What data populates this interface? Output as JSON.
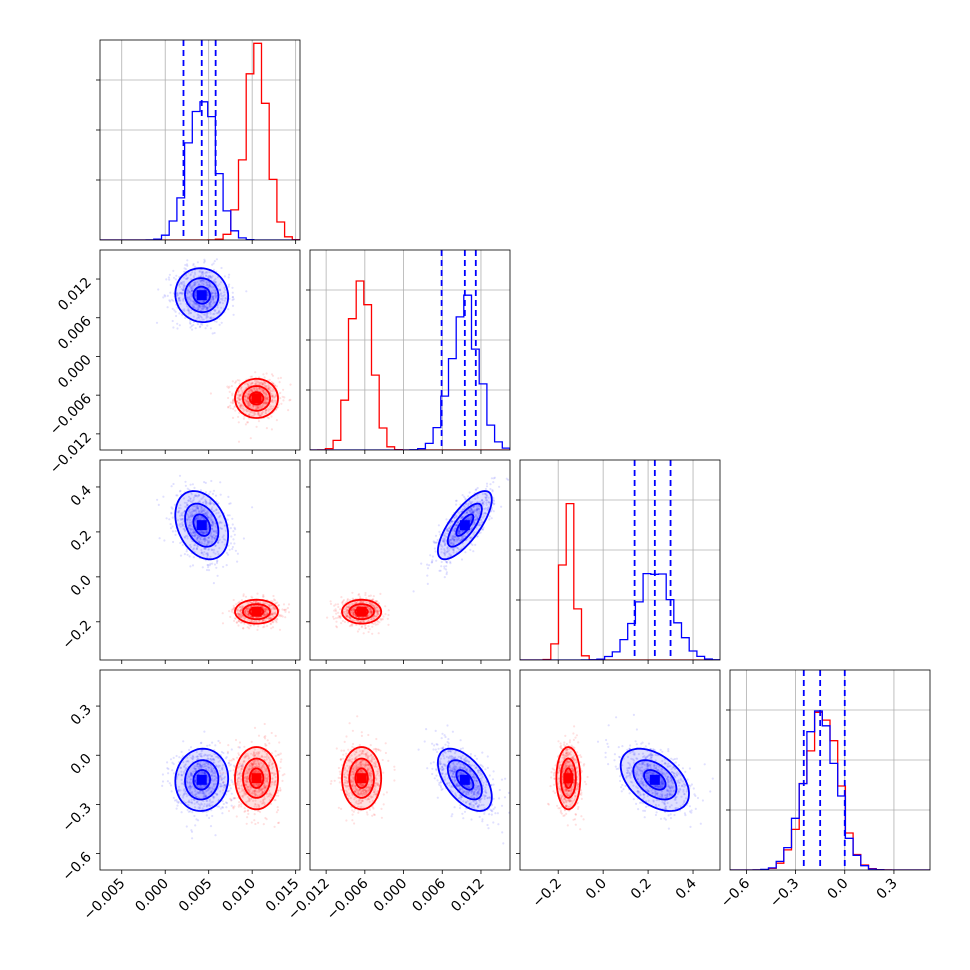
{
  "chart_data": {
    "type": "corner",
    "grid": true,
    "params": [
      {
        "index": 0,
        "range": [
          -0.0075,
          0.0155
        ],
        "ticks": [
          -0.005,
          0.0,
          0.005,
          0.01,
          0.015
        ],
        "tick_labels": [
          "−0.005",
          "0.000",
          "0.005",
          "0.010",
          "0.015"
        ]
      },
      {
        "index": 1,
        "range": [
          -0.0145,
          0.0165
        ],
        "ticks": [
          -0.012,
          -0.006,
          0.0,
          0.006,
          0.012
        ],
        "tick_labels": [
          "−0.012",
          "−0.006",
          "0.000",
          "0.006",
          "0.012"
        ]
      },
      {
        "index": 2,
        "range": [
          -0.37,
          0.52
        ],
        "ticks": [
          -0.2,
          0.0,
          0.2,
          0.4
        ],
        "tick_labels": [
          "−0.2",
          "0.0",
          "0.2",
          "0.4"
        ]
      },
      {
        "index": 3,
        "range": [
          -0.7,
          0.52
        ],
        "ticks": [
          -0.6,
          -0.3,
          0.0,
          0.3
        ],
        "tick_labels": [
          "−0.6",
          "−0.3",
          "0.0",
          "0.3"
        ]
      }
    ],
    "series": [
      {
        "color": "#0000ff",
        "means": [
          0.0042,
          0.0095,
          0.23,
          -0.15
        ],
        "stds": [
          0.0016,
          0.0022,
          0.08,
          0.1
        ],
        "quantiles": [
          [
            0.0021,
            0.0042,
            0.0058
          ],
          [
            0.0059,
            0.0095,
            0.0112
          ],
          [
            0.14,
            0.23,
            0.3
          ],
          [
            -0.25,
            -0.15,
            0.0
          ]
        ]
      },
      {
        "color": "#ff0000",
        "means": [
          0.0105,
          -0.0065,
          -0.155,
          -0.14
        ],
        "stds": [
          0.0013,
          0.0016,
          0.028,
          0.1
        ],
        "quantiles": []
      }
    ],
    "correlations": {
      "blue": {
        "1-0": -0.05,
        "2-0": -0.3,
        "2-1": 0.75,
        "3-0": 0.05,
        "3-1": -0.55,
        "3-2": -0.45
      },
      "red": {
        "1-0": 0.0,
        "2-0": 0.0,
        "2-1": 0.0,
        "3-0": 0.0,
        "3-1": 0.0,
        "3-2": 0.0
      }
    }
  }
}
